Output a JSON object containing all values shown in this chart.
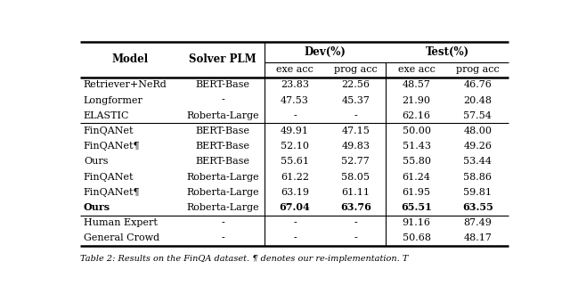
{
  "col_labels": [
    "Model",
    "Solver PLM",
    "exe acc",
    "prog acc",
    "exe acc",
    "prog acc"
  ],
  "rows": [
    [
      "Retriever+NeRd",
      "BERT-Base",
      "23.83",
      "22.56",
      "48.57",
      "46.76",
      false
    ],
    [
      "Longformer",
      "-",
      "47.53",
      "45.37",
      "21.90",
      "20.48",
      false
    ],
    [
      "ELASTIC",
      "Roberta-Large",
      "-",
      "-",
      "62.16",
      "57.54",
      false
    ],
    [
      "FinQANet",
      "BERT-Base",
      "49.91",
      "47.15",
      "50.00",
      "48.00",
      false
    ],
    [
      "FinQANet¶",
      "BERT-Base",
      "52.10",
      "49.83",
      "51.43",
      "49.26",
      false
    ],
    [
      "Ours",
      "BERT-Base",
      "55.61",
      "52.77",
      "55.80",
      "53.44",
      false
    ],
    [
      "FinQANet",
      "Roberta-Large",
      "61.22",
      "58.05",
      "61.24",
      "58.86",
      false
    ],
    [
      "FinQANet¶",
      "Roberta-Large",
      "63.19",
      "61.11",
      "61.95",
      "59.81",
      false
    ],
    [
      "Ours",
      "Roberta-Large",
      "67.04",
      "63.76",
      "65.51",
      "63.55",
      true
    ],
    [
      "Human Expert",
      "-",
      "-",
      "-",
      "91.16",
      "87.49",
      false
    ],
    [
      "General Crowd",
      "-",
      "-",
      "-",
      "50.68",
      "48.17",
      false
    ]
  ],
  "row_group_separators": [
    3,
    9
  ],
  "figsize": [
    6.4,
    3.3
  ],
  "dpi": 100,
  "caption": "Table 2: Results on the FinQA dataset. ¶ denotes our re-implementation. T"
}
